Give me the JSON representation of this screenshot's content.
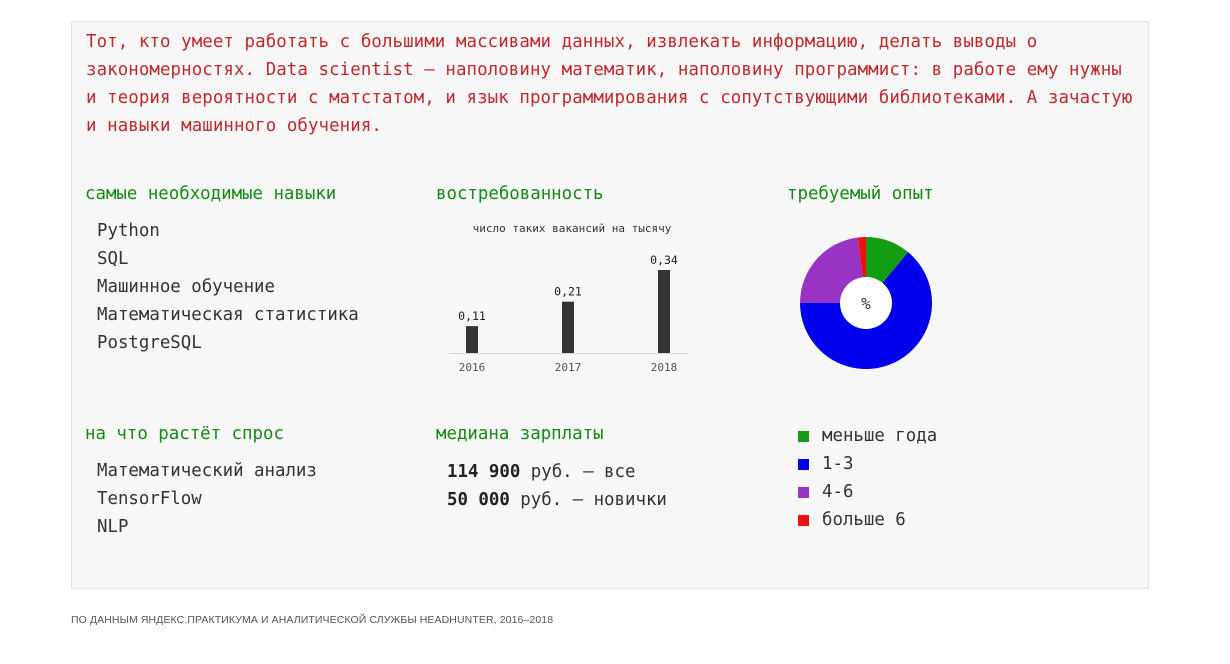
{
  "intro": "Тот, кто умеет работать с большими массивами данных, извлекать информацию, делать выводы о закономерностях. Data scientist — наполовину математик, наполовину программист: в работе ему нужны и теория вероятности с матстатом, и язык программирования с сопутствующими библиотеками. А зачастую и навыки машинного обучения.",
  "skills": {
    "heading": "самые необходимые навыки",
    "items": [
      "Python",
      "SQL",
      "Машинное обучение",
      "Математическая статистика",
      "PostgreSQL"
    ]
  },
  "growth": {
    "heading": "на что растёт спрос",
    "items": [
      "Математический анализ",
      "TensorFlow",
      "NLP"
    ]
  },
  "salary": {
    "heading": "медиана зарплаты",
    "rows": [
      {
        "value": "114 900",
        "text": " руб. — все"
      },
      {
        "value": "50 000",
        "text": " руб. — новички"
      }
    ]
  },
  "colors": {
    "intro_text": "#c0282d",
    "heading": "#138a13",
    "bar": "#333333"
  },
  "chart_data": [
    {
      "type": "bar",
      "title": "востребованность",
      "subtitle": "число таких вакансий на тысячу",
      "categories": [
        "2016",
        "2017",
        "2018"
      ],
      "values": [
        0.11,
        0.21,
        0.34
      ],
      "value_labels": [
        "0,11",
        "0,21",
        "0,34"
      ],
      "grid": false
    },
    {
      "type": "pie",
      "title": "требуемый опыт",
      "center_label": "%",
      "labels": [
        "меньше года",
        "1-3",
        "4-6",
        "больше 6"
      ],
      "values": [
        11,
        64,
        23,
        2
      ],
      "colors": [
        "#159c15",
        "#0000ee",
        "#9933c4",
        "#ee1111"
      ],
      "legend_position": "below"
    }
  ],
  "source": "ПО ДАННЫМ ЯНДЕКС.ПРАКТИКУМА И АНАЛИТИЧЕСКОЙ СЛУЖБЫ HEADHUNTER, 2016–2018"
}
